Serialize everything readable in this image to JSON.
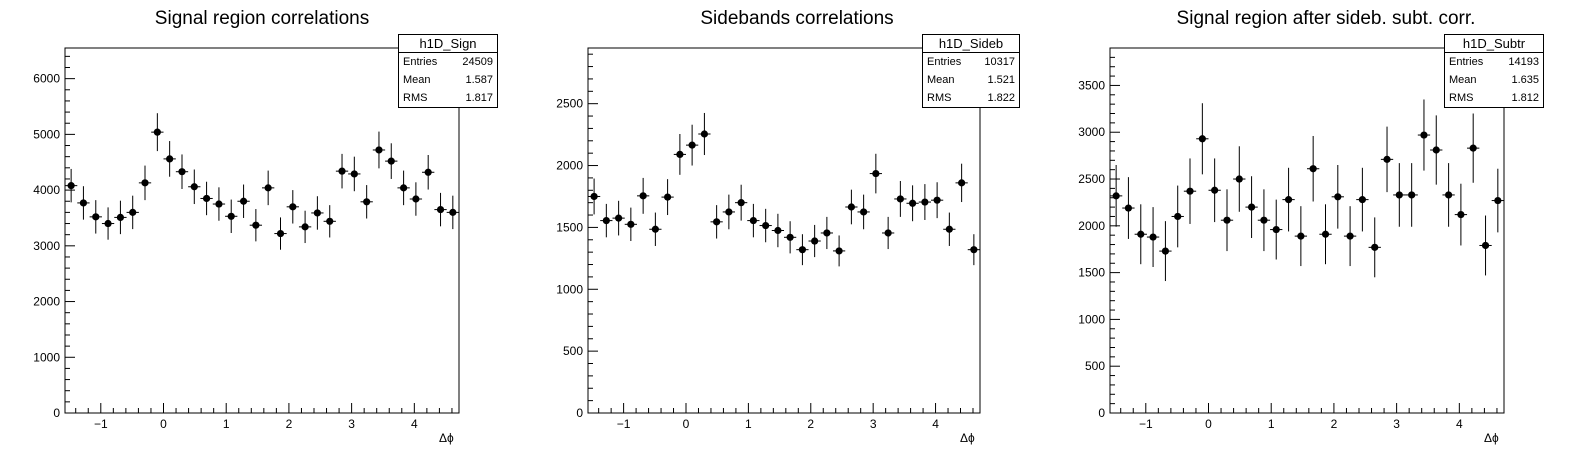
{
  "charts": [
    {
      "title": "Signal region correlations",
      "xlabel": "Δϕ",
      "stats": {
        "name": "h1D_Sign",
        "rows": [
          {
            "label": "Entries",
            "value": "24509"
          },
          {
            "label": "Mean",
            "value": "1.587"
          },
          {
            "label": "RMS",
            "value": "1.817"
          }
        ]
      }
    },
    {
      "title": "Sidebands correlations",
      "xlabel": "Δϕ",
      "stats": {
        "name": "h1D_Sideb",
        "rows": [
          {
            "label": "Entries",
            "value": "10317"
          },
          {
            "label": "Mean",
            "value": "1.521"
          },
          {
            "label": "RMS",
            "value": "1.822"
          }
        ]
      }
    },
    {
      "title": "Signal region after sideb. subt. corr.",
      "xlabel": "Δϕ",
      "stats": {
        "name": "h1D_Subtr",
        "rows": [
          {
            "label": "Entries",
            "value": "14193"
          },
          {
            "label": "Mean",
            "value": "1.635"
          },
          {
            "label": "RMS",
            "value": "1.812"
          }
        ]
      }
    }
  ],
  "chart_data": [
    {
      "type": "scatter",
      "title": "Signal region correlations",
      "xlabel": "Δϕ",
      "ylabel": "",
      "xlim": [
        -1.5708,
        4.7124
      ],
      "ylim": [
        0,
        6550
      ],
      "xticks": [
        -1,
        0,
        1,
        2,
        3,
        4
      ],
      "yticks": [
        0,
        1000,
        2000,
        3000,
        4000,
        5000,
        6000
      ],
      "bin_width": 0.19635,
      "x": [
        -1.473,
        -1.277,
        -1.08,
        -0.884,
        -0.687,
        -0.491,
        -0.295,
        -0.098,
        0.098,
        0.295,
        0.491,
        0.687,
        0.884,
        1.08,
        1.277,
        1.473,
        1.669,
        1.866,
        2.062,
        2.258,
        2.454,
        2.651,
        2.847,
        3.043,
        3.24,
        3.436,
        3.632,
        3.829,
        4.025,
        4.221,
        4.418,
        4.614
      ],
      "y": [
        4080,
        3770,
        3520,
        3400,
        3510,
        3600,
        4130,
        5040,
        4560,
        4330,
        4060,
        3850,
        3750,
        3530,
        3800,
        3370,
        4040,
        3220,
        3700,
        3340,
        3590,
        3440,
        4340,
        4290,
        3790,
        4720,
        4520,
        4040,
        3840,
        4320,
        3650,
        3600
      ],
      "yerr": [
        300,
        300,
        300,
        290,
        300,
        300,
        310,
        340,
        320,
        310,
        310,
        300,
        300,
        300,
        300,
        290,
        310,
        290,
        300,
        290,
        300,
        290,
        310,
        310,
        300,
        330,
        320,
        310,
        300,
        310,
        300,
        300
      ]
    },
    {
      "type": "scatter",
      "title": "Sidebands correlations",
      "xlabel": "Δϕ",
      "ylabel": "",
      "xlim": [
        -1.5708,
        4.7124
      ],
      "ylim": [
        0,
        2950
      ],
      "xticks": [
        -1,
        0,
        1,
        2,
        3,
        4
      ],
      "yticks": [
        0,
        500,
        1000,
        1500,
        2000,
        2500
      ],
      "bin_width": 0.19635,
      "x": [
        -1.473,
        -1.277,
        -1.08,
        -0.884,
        -0.687,
        -0.491,
        -0.295,
        -0.098,
        0.098,
        0.295,
        0.491,
        0.687,
        0.884,
        1.08,
        1.277,
        1.473,
        1.669,
        1.866,
        2.062,
        2.258,
        2.454,
        2.651,
        2.847,
        3.043,
        3.24,
        3.436,
        3.632,
        3.829,
        4.025,
        4.221,
        4.418,
        4.614
      ],
      "y": [
        1750,
        1555,
        1575,
        1525,
        1755,
        1485,
        1745,
        2090,
        2165,
        2255,
        1545,
        1625,
        1700,
        1555,
        1515,
        1475,
        1420,
        1320,
        1390,
        1455,
        1310,
        1665,
        1625,
        1935,
        1455,
        1730,
        1695,
        1705,
        1720,
        1485,
        1860,
        1320
      ],
      "yerr": [
        145,
        135,
        140,
        135,
        145,
        135,
        145,
        165,
        165,
        170,
        135,
        140,
        145,
        135,
        135,
        135,
        130,
        125,
        130,
        130,
        125,
        140,
        140,
        160,
        130,
        145,
        145,
        145,
        145,
        135,
        155,
        125
      ]
    },
    {
      "type": "scatter",
      "title": "Signal region after sideb. subt. corr.",
      "xlabel": "Δϕ",
      "ylabel": "",
      "xlim": [
        -1.5708,
        4.7124
      ],
      "ylim": [
        0,
        3900
      ],
      "xticks": [
        -1,
        0,
        1,
        2,
        3,
        4
      ],
      "yticks": [
        0,
        500,
        1000,
        1500,
        2000,
        2500,
        3000,
        3500
      ],
      "bin_width": 0.19635,
      "x": [
        -1.473,
        -1.277,
        -1.08,
        -0.884,
        -0.687,
        -0.491,
        -0.295,
        -0.098,
        0.098,
        0.295,
        0.491,
        0.687,
        0.884,
        1.08,
        1.277,
        1.473,
        1.669,
        1.866,
        2.062,
        2.258,
        2.454,
        2.651,
        2.847,
        3.043,
        3.24,
        3.436,
        3.632,
        3.829,
        4.025,
        4.221,
        4.418,
        4.614
      ],
      "y": [
        2320,
        2190,
        1910,
        1880,
        1730,
        2100,
        2370,
        2930,
        2380,
        2060,
        2500,
        2200,
        2060,
        1960,
        2280,
        1890,
        2610,
        1910,
        2310,
        1890,
        2280,
        1770,
        2710,
        2330,
        2330,
        2970,
        2810,
        2330,
        2120,
        2830,
        1790,
        2270
      ],
      "yerr": [
        330,
        330,
        320,
        320,
        320,
        330,
        350,
        380,
        340,
        330,
        350,
        330,
        330,
        320,
        340,
        320,
        350,
        320,
        340,
        320,
        340,
        320,
        350,
        340,
        340,
        380,
        370,
        340,
        330,
        370,
        320,
        340
      ]
    }
  ]
}
